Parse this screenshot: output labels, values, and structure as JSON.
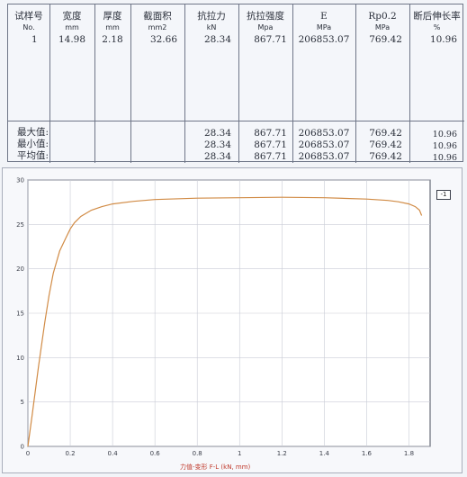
{
  "table": {
    "columns": [
      {
        "name": "试样号",
        "unit": "No."
      },
      {
        "name": "宽度",
        "unit": "mm"
      },
      {
        "name": "厚度",
        "unit": "mm"
      },
      {
        "name": "截面积",
        "unit": "mm2"
      },
      {
        "name": "抗拉力",
        "unit": "kN"
      },
      {
        "name": "抗拉强度",
        "unit": "Mpa"
      },
      {
        "name": "E",
        "unit": "MPa"
      },
      {
        "name": "Rp0.2",
        "unit": "MPa"
      },
      {
        "name": "断后伸长率",
        "unit": "%"
      }
    ],
    "row": [
      "1",
      "14.98",
      "2.18",
      "32.66",
      "28.34",
      "867.71",
      "206853.07",
      "769.42",
      "10.96"
    ],
    "stats": [
      {
        "label": "最大值:",
        "values": [
          "28.34",
          "867.71",
          "206853.07",
          "769.42",
          "10.96"
        ]
      },
      {
        "label": "最小值:",
        "values": [
          "28.34",
          "867.71",
          "206853.07",
          "769.42",
          "10.96"
        ]
      },
      {
        "label": "平均值:",
        "values": [
          "28.34",
          "867.71",
          "206853.07",
          "769.42",
          "10.96"
        ]
      }
    ]
  },
  "chart_data": {
    "type": "line",
    "title": "",
    "xlabel": "力值-变形 F-L   (kN, mm)",
    "ylabel": "",
    "xlim": [
      0,
      1.9
    ],
    "ylim": [
      0,
      30
    ],
    "xticks": [
      "0",
      "0.2",
      "0.4",
      "0.6",
      "0.8",
      "1",
      "1.2",
      "1.4",
      "1.6",
      "1.8"
    ],
    "yticks": [
      "0",
      "5",
      "10",
      "15",
      "20",
      "25",
      "30"
    ],
    "grid": true,
    "legend": "1",
    "series": [
      {
        "name": "1",
        "color": "#d18b45",
        "x": [
          0.0,
          0.02,
          0.05,
          0.08,
          0.1,
          0.12,
          0.15,
          0.18,
          0.2,
          0.22,
          0.25,
          0.3,
          0.35,
          0.4,
          0.5,
          0.6,
          0.8,
          1.0,
          1.2,
          1.4,
          1.6,
          1.7,
          1.75,
          1.8,
          1.83,
          1.85,
          1.86
        ],
        "y": [
          0.0,
          3.5,
          9.0,
          14.0,
          17.0,
          19.5,
          22.0,
          23.5,
          24.5,
          25.2,
          25.9,
          26.6,
          27.0,
          27.3,
          27.6,
          27.8,
          27.95,
          28.0,
          28.05,
          28.0,
          27.85,
          27.7,
          27.55,
          27.3,
          27.0,
          26.6,
          26.0
        ]
      }
    ]
  }
}
